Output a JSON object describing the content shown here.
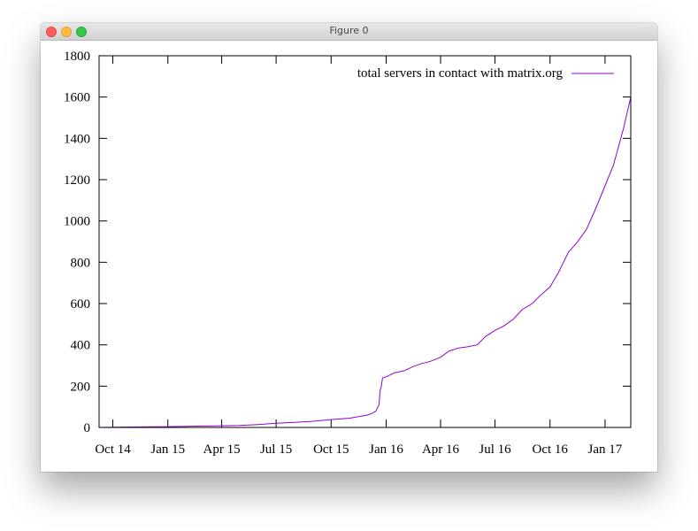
{
  "window": {
    "title": "Figure 0"
  },
  "chart_data": {
    "type": "line",
    "title": "",
    "xlabel": "",
    "ylabel": "",
    "x_ticks": [
      "Oct 14",
      "Jan 15",
      "Apr 15",
      "Jul 15",
      "Oct 15",
      "Jan 16",
      "Apr 16",
      "Jul 16",
      "Oct 16",
      "Jan 17"
    ],
    "y_ticks": [
      "0",
      "200",
      "400",
      "600",
      "800",
      "1000",
      "1200",
      "1400",
      "1600",
      "1800"
    ],
    "ylim": [
      0,
      1800
    ],
    "xlim": [
      "2014-09-08",
      "2017-02-13"
    ],
    "grid": false,
    "legend_position": "top-right",
    "series": [
      {
        "name": "total servers in contact with matrix.org",
        "color": "#9400d3",
        "x": [
          "2014-09-08",
          "2014-10-01",
          "2014-11-01",
          "2014-12-01",
          "2015-01-01",
          "2015-02-01",
          "2015-03-01",
          "2015-04-01",
          "2015-05-01",
          "2015-06-01",
          "2015-07-01",
          "2015-08-01",
          "2015-09-01",
          "2015-10-01",
          "2015-11-01",
          "2015-12-01",
          "2015-12-10",
          "2015-12-15",
          "2015-12-20",
          "2015-12-22",
          "2015-12-24",
          "2015-12-26",
          "2016-01-01",
          "2016-01-15",
          "2016-02-01",
          "2016-02-15",
          "2016-03-01",
          "2016-03-15",
          "2016-04-01",
          "2016-04-15",
          "2016-05-01",
          "2016-05-15",
          "2016-06-01",
          "2016-06-15",
          "2016-07-01",
          "2016-07-15",
          "2016-08-01",
          "2016-08-15",
          "2016-09-01",
          "2016-09-15",
          "2016-10-01",
          "2016-10-15",
          "2016-11-01",
          "2016-11-15",
          "2016-12-01",
          "2016-12-15",
          "2017-01-01",
          "2017-01-15",
          "2017-02-01",
          "2017-02-13"
        ],
        "values": [
          0,
          1,
          2,
          3,
          4,
          5,
          7,
          8,
          10,
          14,
          20,
          25,
          30,
          38,
          45,
          60,
          70,
          80,
          110,
          180,
          200,
          240,
          245,
          265,
          275,
          295,
          310,
          320,
          340,
          370,
          385,
          390,
          400,
          440,
          470,
          490,
          525,
          570,
          600,
          640,
          680,
          750,
          850,
          895,
          960,
          1050,
          1170,
          1270,
          1450,
          1600
        ]
      }
    ]
  }
}
